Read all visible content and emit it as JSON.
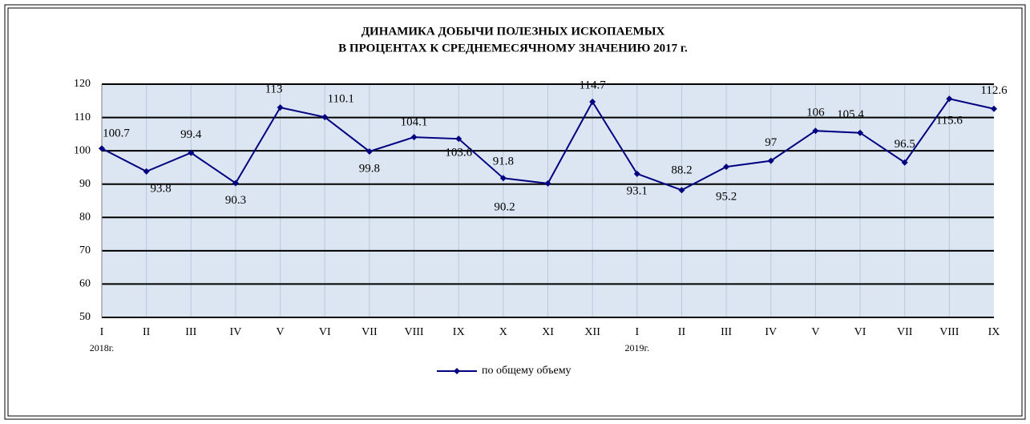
{
  "chart_data": {
    "type": "line",
    "title": [
      "ДИНАМИКА ДОБЫЧИ ПОЛЕЗНЫХ ИСКОПАЕМЫХ",
      "В ПРОЦЕНТАХ К СРЕДНЕМЕСЯЧНОМУ ЗНАЧЕНИЮ 2017 г."
    ],
    "categories": [
      "I",
      "II",
      "III",
      "IV",
      "V",
      "VI",
      "VII",
      "VIII",
      "IX",
      "X",
      "XI",
      "XII",
      "I",
      "II",
      "III",
      "IV",
      "V",
      "VI",
      "VII",
      "VIII",
      "IX"
    ],
    "year_labels": [
      "2018г.",
      null,
      null,
      null,
      null,
      null,
      null,
      null,
      null,
      null,
      null,
      null,
      "2019г.",
      null,
      null,
      null,
      null,
      null,
      null,
      null,
      null
    ],
    "series": [
      {
        "name": "по общему объему",
        "color": "#000080",
        "values": [
          100.7,
          93.8,
          99.4,
          90.3,
          113,
          110.1,
          99.8,
          104.1,
          103.6,
          91.8,
          90.2,
          114.7,
          93.1,
          88.2,
          95.2,
          97,
          106,
          105.4,
          96.5,
          115.6,
          112.6
        ]
      }
    ],
    "ylim": [
      50,
      120
    ],
    "yticks": [
      50,
      60,
      70,
      80,
      90,
      100,
      110,
      120
    ],
    "grid": true,
    "legend": "bottom"
  }
}
